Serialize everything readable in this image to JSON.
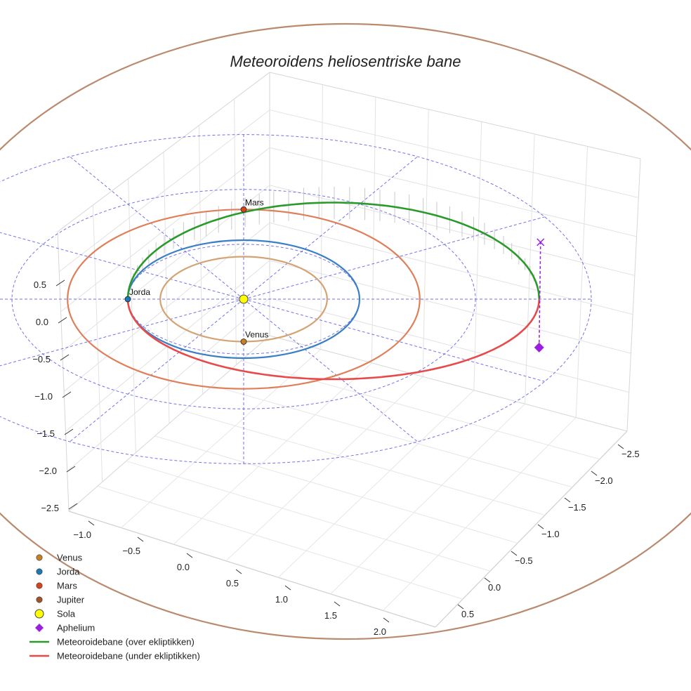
{
  "chart_data": {
    "type": "line",
    "projection": "3d",
    "title": "Meteoroidens heliosentriske bane",
    "xlabel": "",
    "ylabel": "",
    "zlabel": "",
    "x_ticks": [
      "−1.0",
      "−0.5",
      "0.0",
      "0.5",
      "1.0",
      "1.5",
      "2.0"
    ],
    "y_ticks": [
      "−2.5",
      "−2.0",
      "−1.5",
      "−1.0",
      "−0.5",
      "0.0",
      "0.5"
    ],
    "z_ticks": [
      "0.5",
      "0.0",
      "−0.5",
      "−1.0",
      "−1.5",
      "−2.0",
      "−2.5"
    ],
    "xlim": [
      -1.2,
      2.3
    ],
    "ylim": [
      -2.7,
      0.7
    ],
    "zlim": [
      -2.7,
      0.7
    ],
    "grid": true,
    "legend_position": "lower-left",
    "sun": {
      "name": "Sola",
      "x": 0,
      "y": 0,
      "z": 0,
      "color": "#ffff00"
    },
    "planets": [
      {
        "name": "Venus",
        "label": "Venus",
        "radius_au": 0.72,
        "x": 0,
        "y": -0.72,
        "color": "#d4a373",
        "marker_color": "#c87f2a"
      },
      {
        "name": "Jorda",
        "label": "Jorda",
        "radius_au": 1.0,
        "x": -1.0,
        "y": 0,
        "color": "#3a7fc6",
        "marker_color": "#1f77b4"
      },
      {
        "name": "Mars",
        "label": "Mars",
        "radius_au": 1.52,
        "x": 0,
        "y": 1.52,
        "color": "#df7f5a",
        "marker_color": "#d2451e"
      },
      {
        "name": "Jupiter",
        "label": "",
        "radius_au": 5.2,
        "color": "#b98a6e",
        "marker_color": "#a0522d"
      }
    ],
    "reference_circles_au": [
      1.0,
      2.0,
      3.0
    ],
    "series": [
      {
        "name": "Meteoroidebane (over ekliptikken)",
        "color": "#2a9a2a",
        "note": ""
      },
      {
        "name": "Meteoroidebane (under ekliptikken)",
        "color": "#e84a4a",
        "note": ""
      }
    ],
    "meteoroid_orbit": {
      "perihelion_au": 1.0,
      "aphelion_au": 2.55,
      "perihelion_angle_deg": 180
    },
    "aphelion": {
      "name": "Aphelion",
      "x": 2.55,
      "y": 0,
      "color": "#9b1ee0",
      "height_above": 0.35
    },
    "legend": [
      {
        "label": "Venus",
        "kind": "dot",
        "color": "#c87f2a"
      },
      {
        "label": "Jorda",
        "kind": "dot",
        "color": "#1f77b4"
      },
      {
        "label": "Mars",
        "kind": "dot",
        "color": "#d2451e"
      },
      {
        "label": "Jupiter",
        "kind": "dot",
        "color": "#a0522d"
      },
      {
        "label": "Sola",
        "kind": "sun",
        "color": "#ffff00"
      },
      {
        "label": "Aphelium",
        "kind": "diamond",
        "color": "#9b1ee0"
      },
      {
        "label": "Meteoroidebane (over ekliptikken)",
        "kind": "line",
        "color": "#2a9a2a"
      },
      {
        "label": "Meteoroidebane (under ekliptikken)",
        "kind": "line",
        "color": "#e84a4a"
      }
    ]
  }
}
